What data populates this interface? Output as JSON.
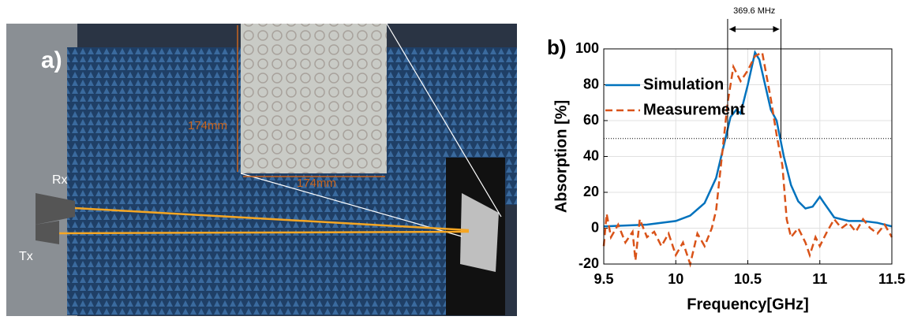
{
  "photo": {
    "label": "a)",
    "sample_height": "174mm",
    "sample_width": "174mm",
    "rx": "Rx",
    "tx": "Tx"
  },
  "chart_data": {
    "type": "line",
    "panel_label": "b)",
    "xlabel": "Frequency[GHz]",
    "ylabel": "Absorption [%]",
    "xlim": [
      9.5,
      11.5
    ],
    "xticks": [
      9.5,
      10,
      10.5,
      11,
      11.5
    ],
    "ylim": [
      -20,
      100
    ],
    "yticks": [
      -20,
      0,
      20,
      40,
      60,
      80,
      100
    ],
    "grid": true,
    "legend": "upper left",
    "reference_line": 50,
    "annotation": {
      "text": "369.6 MHz",
      "x": [
        10.36,
        10.73
      ]
    },
    "series": [
      {
        "name": "Simulation",
        "color": "#0072bd",
        "dash": false,
        "x": [
          9.5,
          9.8,
          10.0,
          10.1,
          10.2,
          10.28,
          10.33,
          10.38,
          10.42,
          10.45,
          10.5,
          10.55,
          10.58,
          10.62,
          10.66,
          10.7,
          10.75,
          10.8,
          10.85,
          10.9,
          10.95,
          11.0,
          11.03,
          11.1,
          11.2,
          11.3,
          11.4,
          11.5
        ],
        "values": [
          1,
          2,
          4,
          7,
          14,
          28,
          45,
          62,
          66,
          64,
          80,
          98,
          94,
          80,
          66,
          60,
          40,
          24,
          15,
          11,
          12,
          17.5,
          14,
          6,
          4,
          4,
          3,
          1
        ]
      },
      {
        "name": "Measurement",
        "color": "#d95319",
        "dash": true,
        "x": [
          9.5,
          9.52,
          9.55,
          9.6,
          9.65,
          9.7,
          9.72,
          9.75,
          9.8,
          9.85,
          9.9,
          9.95,
          10.0,
          10.05,
          10.1,
          10.15,
          10.2,
          10.25,
          10.28,
          10.32,
          10.36,
          10.4,
          10.45,
          10.5,
          10.55,
          10.6,
          10.63,
          10.66,
          10.7,
          10.74,
          10.77,
          10.8,
          10.85,
          10.9,
          10.93,
          10.97,
          11.0,
          11.05,
          11.1,
          11.15,
          11.2,
          11.25,
          11.3,
          11.35,
          11.4,
          11.45,
          11.5
        ],
        "values": [
          -10,
          8,
          -5,
          2,
          -8,
          -2,
          -18,
          5,
          -5,
          -2,
          -10,
          -3,
          -15,
          -8,
          -20,
          -3,
          -10,
          0,
          10,
          40,
          70,
          90,
          82,
          88,
          96,
          98,
          85,
          72,
          52,
          35,
          5,
          -5,
          0,
          -8,
          -15,
          -5,
          -10,
          -2,
          5,
          0,
          3,
          -2,
          5,
          0,
          -3,
          2,
          -5
        ]
      }
    ]
  }
}
